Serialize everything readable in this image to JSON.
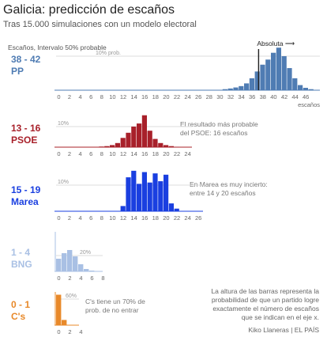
{
  "header": {
    "title": "Galicia: predicción de escaños",
    "subtitle": "Tras 15.000 simulaciones con un modelo electoral"
  },
  "legend_note": "Escaños, Intervalo 50% probable",
  "annotations": {
    "psoe": [
      "El resultado más probable",
      "del PSOE: 16 escaños"
    ],
    "marea": [
      "En Marea es muy incierto:",
      "entre 14 y 20 escaños"
    ],
    "cs": [
      "C's tiene un 70% de",
      "prob. de no entrar"
    ],
    "footer": [
      "La altura de las barras representa la",
      "probabilidad de que un partido logre",
      "exactamente el número de escaños",
      "que se indican en el eje x."
    ],
    "credit": "Kiko Llaneras  |  EL PAÍS"
  },
  "colors": {
    "PP": "#4f7cb3",
    "PSOE": "#a8202a",
    "Marea": "#1a3fe0",
    "BNG": "#a9c0e4",
    "Cs": "#e8892a"
  },
  "chart_data": [
    {
      "type": "bar",
      "party": "PP",
      "range": "38 - 42",
      "x": [
        28,
        29,
        30,
        31,
        32,
        33,
        34,
        35,
        36,
        37,
        38,
        39,
        40,
        41,
        42,
        43,
        44,
        45,
        46,
        47
      ],
      "values": [
        0,
        0,
        0,
        0.3,
        0.5,
        0.8,
        1.2,
        2.0,
        3.5,
        5.5,
        7.5,
        9.0,
        11.0,
        12.5,
        10.0,
        6.5,
        3.5,
        1.5,
        0.7,
        0.3
      ],
      "xticks": [
        "0",
        "2",
        "4",
        "6",
        "8",
        "10",
        "12",
        "14",
        "16",
        "18",
        "20",
        "22",
        "24",
        "26",
        "28",
        "30",
        "32",
        "34",
        "36",
        "38",
        "40",
        "42",
        "44",
        "46"
      ],
      "xlabel": "escaños",
      "ref_line": {
        "label": "10% prob.",
        "value": 10
      },
      "threshold": {
        "label": "Absoluta ⟶",
        "x": 38
      }
    },
    {
      "type": "bar",
      "party": "PSOE",
      "range": "13 - 16",
      "x": [
        8,
        9,
        10,
        11,
        12,
        13,
        14,
        15,
        16,
        17,
        18,
        19,
        20,
        21,
        22
      ],
      "values": [
        0.3,
        0.5,
        1.0,
        2.0,
        4.5,
        7.0,
        10.0,
        11.5,
        15.5,
        8.0,
        4.0,
        2.0,
        1.0,
        0.5,
        0.2
      ],
      "xticks": [
        "0",
        "2",
        "4",
        "6",
        "8",
        "10",
        "12",
        "14",
        "16",
        "18",
        "20",
        "22",
        "24"
      ],
      "ref_line": {
        "label": "10%",
        "value": 10
      }
    },
    {
      "type": "bar",
      "party": "Marea",
      "range": "15 - 19",
      "x": [
        12,
        13,
        14,
        15,
        16,
        17,
        18,
        19,
        20,
        21,
        22
      ],
      "values": [
        2.0,
        13.0,
        15.5,
        10.5,
        15.0,
        11.0,
        14.5,
        11.5,
        14.0,
        3.0,
        1.0
      ],
      "xticks": [
        "0",
        "2",
        "4",
        "6",
        "8",
        "10",
        "12",
        "14",
        "16",
        "18",
        "20",
        "22",
        "24",
        "26"
      ],
      "ref_line": {
        "label": "10%",
        "value": 10
      }
    },
    {
      "type": "bar",
      "party": "BNG",
      "range": "1 - 4",
      "x": [
        0,
        1,
        2,
        3,
        4,
        5,
        6,
        7
      ],
      "values": [
        16,
        23,
        27,
        19,
        9,
        3,
        1,
        0.3
      ],
      "xticks": [
        "0",
        "2",
        "4",
        "6",
        "8"
      ],
      "ref_line": {
        "label": "20%",
        "value": 20
      }
    },
    {
      "type": "bar",
      "party": "C's",
      "range": "0 - 1",
      "x": [
        0,
        1
      ],
      "values": [
        70,
        12
      ],
      "xticks": [
        "0",
        "2",
        "4"
      ],
      "ref_line": {
        "label": "60%",
        "value": 60
      }
    }
  ]
}
